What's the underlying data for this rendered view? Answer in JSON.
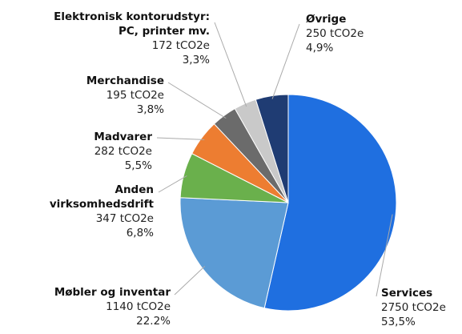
{
  "chart_data": {
    "type": "pie",
    "categories": [
      "Services",
      "Møbler og inventar",
      "Anden\nvirksomhedsdrift",
      "Madvarer",
      "Merchandise",
      "Elektronisk kontorudstyr:\nPC, printer mv.",
      "Øvrige"
    ],
    "values": [
      2750,
      1140,
      347,
      282,
      195,
      172,
      250
    ],
    "value_labels": [
      "2750 tCO2e",
      "1140 tCO2e",
      "347 tCO2e",
      "282 tCO2e",
      "195 tCO2e",
      "172 tCO2e",
      "250 tCO2e"
    ],
    "shares": [
      53.5,
      22.2,
      6.8,
      5.5,
      3.8,
      3.3,
      4.9
    ],
    "share_labels": [
      "53,5%",
      "22.2%",
      "6,8%",
      "5,5%",
      "3,8%",
      "3,3%",
      "4,9%"
    ],
    "colors": [
      "#1f6fe0",
      "#5b9bd5",
      "#6ab04c",
      "#ed7d31",
      "#6b6b6b",
      "#c9c9c9",
      "#1f3c73"
    ]
  }
}
